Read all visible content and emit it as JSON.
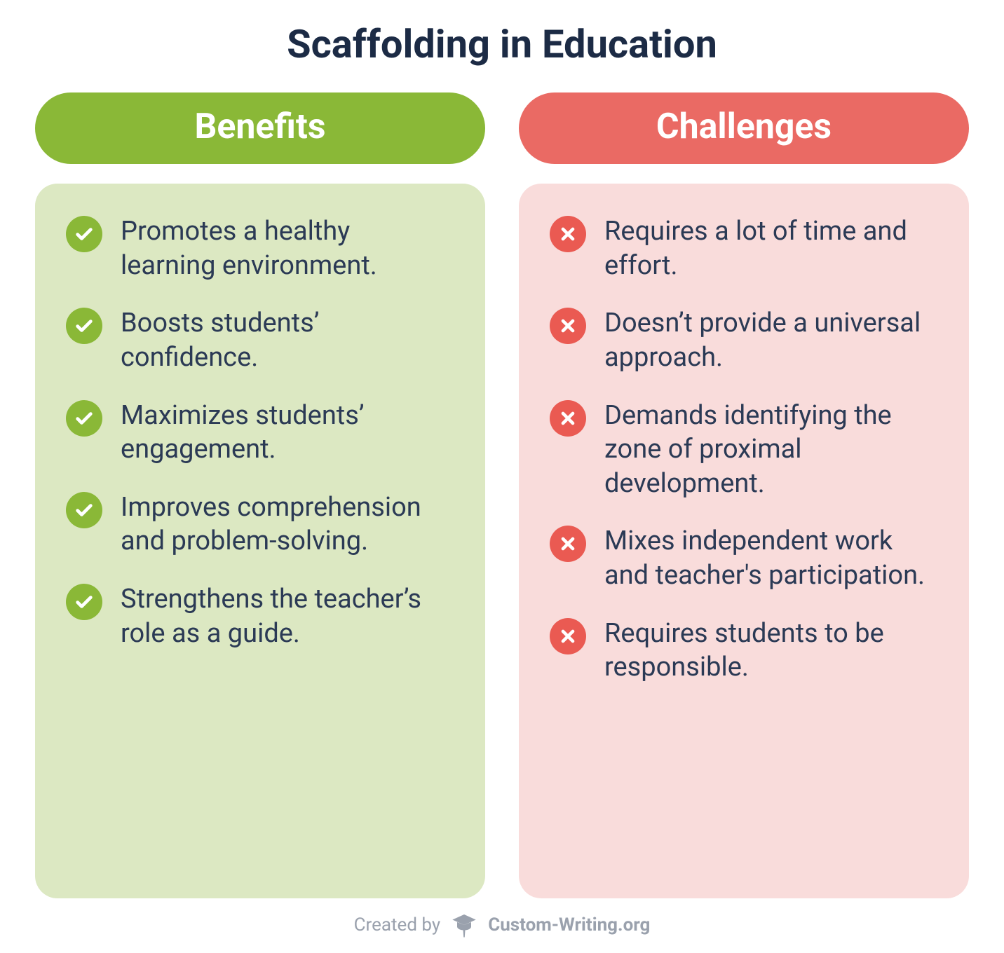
{
  "title": "Scaffolding in Education",
  "title_color": "#1c2b45",
  "title_fontsize": 56,
  "background_color": "#ffffff",
  "item_text_color": "#2b3a55",
  "item_fontsize": 38,
  "pill_fontsize": 50,
  "pill_text_color": "#ffffff",
  "panel_border_radius": 32,
  "columns": {
    "benefits": {
      "heading": "Benefits",
      "pill_color": "#8ab837",
      "panel_color": "#dce8c2",
      "icon_bg": "#8ab837",
      "icon_fg": "#ffffff",
      "icon_type": "check",
      "items": [
        "Promotes a healthy learning environment.",
        "Boosts students’ confidence.",
        "Maximizes students’ engagement.",
        "Improves comprehension and problem-solving.",
        "Strengthens the teacher’s role as a guide."
      ]
    },
    "challenges": {
      "heading": "Challenges",
      "pill_color": "#ea6a64",
      "panel_color": "#f9dcdb",
      "icon_bg": "#ea5a52",
      "icon_fg": "#ffffff",
      "icon_type": "cross",
      "items": [
        "Requires a lot of time and effort.",
        "Doesn’t provide a universal approach.",
        "Demands identifying the zone of proximal development.",
        "Mixes independent work and teacher's participation.",
        "Requires students to be responsible."
      ]
    }
  },
  "footer": {
    "created_by_label": "Created by",
    "brand": "Custom-Writing.org",
    "text_color": "#9aa1ad",
    "fontsize": 26,
    "icon_color": "#9aa1ad"
  }
}
